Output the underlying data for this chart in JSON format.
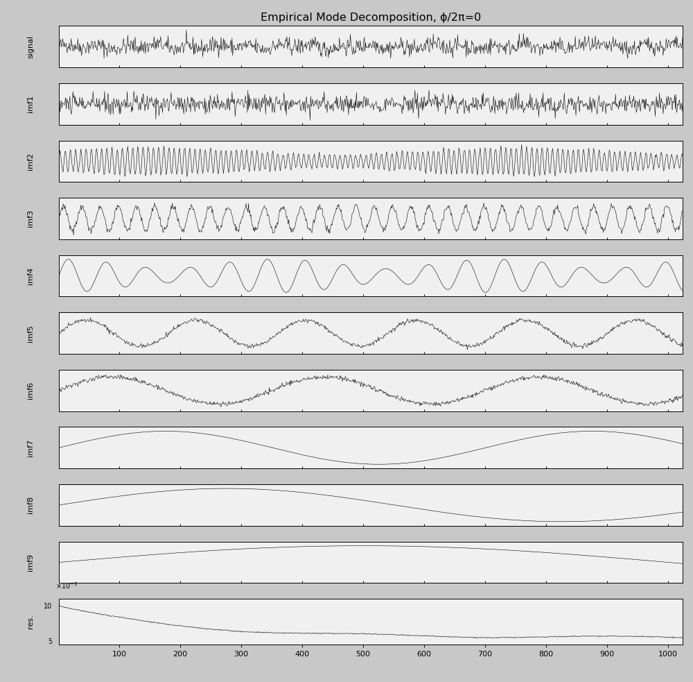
{
  "title": "Empirical Mode Decomposition, ϕ/2π=0",
  "background_color": "#c8c8c8",
  "plot_bg_color": "#f0f0f0",
  "labels": [
    "signal",
    "imf1",
    "imf2",
    "imf3",
    "imf4",
    "imf5",
    "imf6",
    "imf7",
    "imf8",
    "imf9",
    "res."
  ],
  "n_points": 1024,
  "x_ticks": [
    100,
    200,
    300,
    400,
    500,
    600,
    700,
    800,
    900,
    1000
  ],
  "line_color": "#000000",
  "line_width": 0.4
}
